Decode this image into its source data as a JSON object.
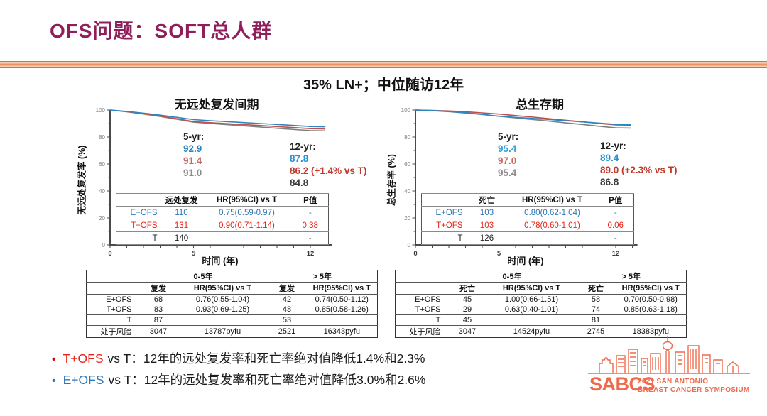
{
  "slide": {
    "title": "OFS问题：SOFT总人群",
    "subtitle": "35% LN+；中位随访12年"
  },
  "colors": {
    "title": "#8e1f5b",
    "accent_orange": "#db6d38",
    "blue": "#2e75b6",
    "red": "#ea2318",
    "soft_red": "#c66a60",
    "dark_red": "#c0392b",
    "gray_value": "#8c8c8c",
    "dark_value": "#3c3c3c",
    "logo": "#ee6a4d"
  },
  "chart_data": [
    {
      "type": "line",
      "title": "无远处复发间期",
      "xlabel": "时间 (年)",
      "ylabel": "无远处复发率 (%)",
      "xlim": [
        0,
        13
      ],
      "ylim": [
        0,
        100
      ],
      "yticks": [
        0,
        20,
        40,
        60,
        80,
        100
      ],
      "xticks_labeled": [
        0,
        5,
        12
      ],
      "grid": false,
      "legend": "none",
      "series": [
        {
          "name": "T",
          "color": "#808080",
          "x": [
            0,
            1,
            2,
            3,
            4,
            5,
            6,
            7,
            8,
            9,
            10,
            11,
            12,
            12.9
          ],
          "y": [
            100,
            98.7,
            97.0,
            95.2,
            93.2,
            91.0,
            90.1,
            89.2,
            88.3,
            87.4,
            86.5,
            85.6,
            84.8,
            84.6
          ]
        },
        {
          "name": "T+OFS",
          "color": "#c0504d",
          "x": [
            0,
            1,
            2,
            3,
            4,
            5,
            6,
            7,
            8,
            9,
            10,
            11,
            12,
            12.9
          ],
          "y": [
            100,
            98.8,
            97.3,
            95.6,
            93.6,
            91.4,
            90.6,
            89.9,
            89.2,
            88.5,
            87.7,
            87.0,
            86.2,
            86.0
          ]
        },
        {
          "name": "E+OFS",
          "color": "#2e86c1",
          "x": [
            0,
            1,
            2,
            3,
            4,
            5,
            6,
            7,
            8,
            9,
            10,
            11,
            12,
            12.9
          ],
          "y": [
            100,
            99.0,
            97.7,
            96.2,
            94.6,
            92.9,
            92.1,
            91.4,
            90.7,
            90.0,
            89.3,
            88.6,
            87.8,
            87.6
          ]
        }
      ],
      "annotations": {
        "five_yr": {
          "label": "5-yr:",
          "values": [
            {
              "text": "92.9",
              "color": "#2e86c1"
            },
            {
              "text": "91.4",
              "color": "#c66a60"
            },
            {
              "text": "91.0",
              "color": "#8c8c8c"
            }
          ]
        },
        "twelve_yr": {
          "label": "12-yr:",
          "values": [
            {
              "text": "87.8",
              "color": "#2a8fd0"
            },
            {
              "text": "86.2 (+1.4% vs T)",
              "color": "#c0392b"
            },
            {
              "text": "84.8",
              "color": "#3c3c3c"
            }
          ]
        }
      },
      "inner_table": {
        "headers": [
          "",
          "远处复发",
          "HR(95%CI) vs T",
          "P值"
        ],
        "rows": [
          {
            "color": "#2e75b6",
            "cells": [
              "E+OFS",
              "110",
              "0.75(0.59-0.97)",
              "-"
            ]
          },
          {
            "color": "#ea2318",
            "cells": [
              "T+OFS",
              "131",
              "0.90(0.71-1.14)",
              "0.38"
            ]
          },
          {
            "color": "#222222",
            "cells": [
              "T",
              "140",
              "",
              "-"
            ]
          }
        ]
      }
    },
    {
      "type": "line",
      "title": "总生存期",
      "xlabel": "时间 (年)",
      "ylabel": "总生存率 (%)",
      "xlim": [
        0,
        13
      ],
      "ylim": [
        0,
        100
      ],
      "yticks": [
        0,
        20,
        40,
        60,
        80,
        100
      ],
      "xticks_labeled": [
        0,
        5,
        12
      ],
      "grid": false,
      "legend": "none",
      "series": [
        {
          "name": "T",
          "color": "#808080",
          "x": [
            0,
            1,
            2,
            3,
            4,
            5,
            6,
            7,
            8,
            9,
            10,
            11,
            12,
            12.9
          ],
          "y": [
            100,
            99.5,
            98.8,
            97.8,
            96.7,
            95.4,
            94.2,
            93.0,
            91.8,
            90.5,
            89.3,
            88.0,
            86.8,
            86.6
          ]
        },
        {
          "name": "T+OFS",
          "color": "#c0504d",
          "x": [
            0,
            1,
            2,
            3,
            4,
            5,
            6,
            7,
            8,
            9,
            10,
            11,
            12,
            12.9
          ],
          "y": [
            100,
            99.7,
            99.3,
            98.7,
            97.9,
            97.0,
            95.9,
            94.8,
            93.6,
            92.4,
            91.3,
            90.1,
            89.0,
            88.8
          ]
        },
        {
          "name": "E+OFS",
          "color": "#2e86c1",
          "x": [
            0,
            1,
            2,
            3,
            4,
            5,
            6,
            7,
            8,
            9,
            10,
            11,
            12,
            12.9
          ],
          "y": [
            100,
            99.6,
            99.0,
            98.0,
            96.8,
            95.4,
            94.6,
            93.8,
            93.0,
            92.1,
            91.2,
            90.3,
            89.4,
            89.2
          ]
        }
      ],
      "annotations": {
        "five_yr": {
          "label": "5-yr:",
          "values": [
            {
              "text": "95.4",
              "color": "#3aa0d8"
            },
            {
              "text": "97.0",
              "color": "#c66a60"
            },
            {
              "text": "95.4",
              "color": "#8c8c8c"
            }
          ]
        },
        "twelve_yr": {
          "label": "12-yr:",
          "values": [
            {
              "text": "89.4",
              "color": "#2a8fd0"
            },
            {
              "text": "89.0 (+2.3% vs T)",
              "color": "#c0392b"
            },
            {
              "text": "86.8",
              "color": "#3c3c3c"
            }
          ]
        }
      },
      "inner_table": {
        "headers": [
          "",
          "死亡",
          "HR(95%CI) vs T",
          "P值"
        ],
        "rows": [
          {
            "color": "#2e75b6",
            "cells": [
              "E+OFS",
              "103",
              "0.80(0.62-1.04)",
              "-"
            ]
          },
          {
            "color": "#ea2318",
            "cells": [
              "T+OFS",
              "103",
              "0.78(0.60-1.01)",
              "0.06"
            ]
          },
          {
            "color": "#222222",
            "cells": [
              "T",
              "126",
              "",
              "-"
            ]
          }
        ]
      }
    }
  ],
  "bottom_tables": [
    {
      "span_headers": [
        "0-5年",
        "> 5年"
      ],
      "sub_headers": [
        "",
        "复发",
        "HR(95%CI) vs T",
        "复发",
        "HR(95%CI) vs T"
      ],
      "rows": [
        [
          "E+OFS",
          "68",
          "0.76(0.55-1.04)",
          "42",
          "0.74(0.50-1.12)"
        ],
        [
          "T+OFS",
          "83",
          "0.93(0.69-1.25)",
          "48",
          "0.85(0.58-1.26)"
        ],
        [
          "T",
          "87",
          "",
          "53",
          ""
        ],
        [
          "处于风险",
          "3047",
          "13787pyfu",
          "2521",
          "16343pyfu"
        ]
      ]
    },
    {
      "span_headers": [
        "0-5年",
        "> 5年"
      ],
      "sub_headers": [
        "",
        "死亡",
        "HR(95%CI) vs T",
        "死亡",
        "HR(95%CI) vs T"
      ],
      "rows": [
        [
          "E+OFS",
          "45",
          "1.00(0.66-1.51)",
          "58",
          "0.70(0.50-0.98)"
        ],
        [
          "T+OFS",
          "29",
          "0.63(0.40-1.01)",
          "74",
          "0.85(0.63-1.18)"
        ],
        [
          "T",
          "45",
          "",
          "81",
          ""
        ],
        [
          "处于风险",
          "3047",
          "14524pyfu",
          "2745",
          "18383pyfu"
        ]
      ]
    }
  ],
  "bullets": [
    {
      "marker": "•",
      "marker_color": "#cc0000",
      "arm": "T+OFS",
      "arm_color": "#ea2318",
      "rest": "vs T：12年的远处复发率和死亡率绝对值降低1.4%和2.3%"
    },
    {
      "marker": "•",
      "marker_color": "#2e75b6",
      "arm": "E+OFS",
      "arm_color": "#2e75b6",
      "rest": "vs T：12年的远处复发率和死亡率绝对值降低3.0%和2.6%"
    }
  ],
  "logo": {
    "name": "SABCS",
    "line1": "2021 SAN ANTONIO",
    "line2": "BREAST CANCER SYMPOSIUM",
    "color": "#ee6a4d"
  }
}
